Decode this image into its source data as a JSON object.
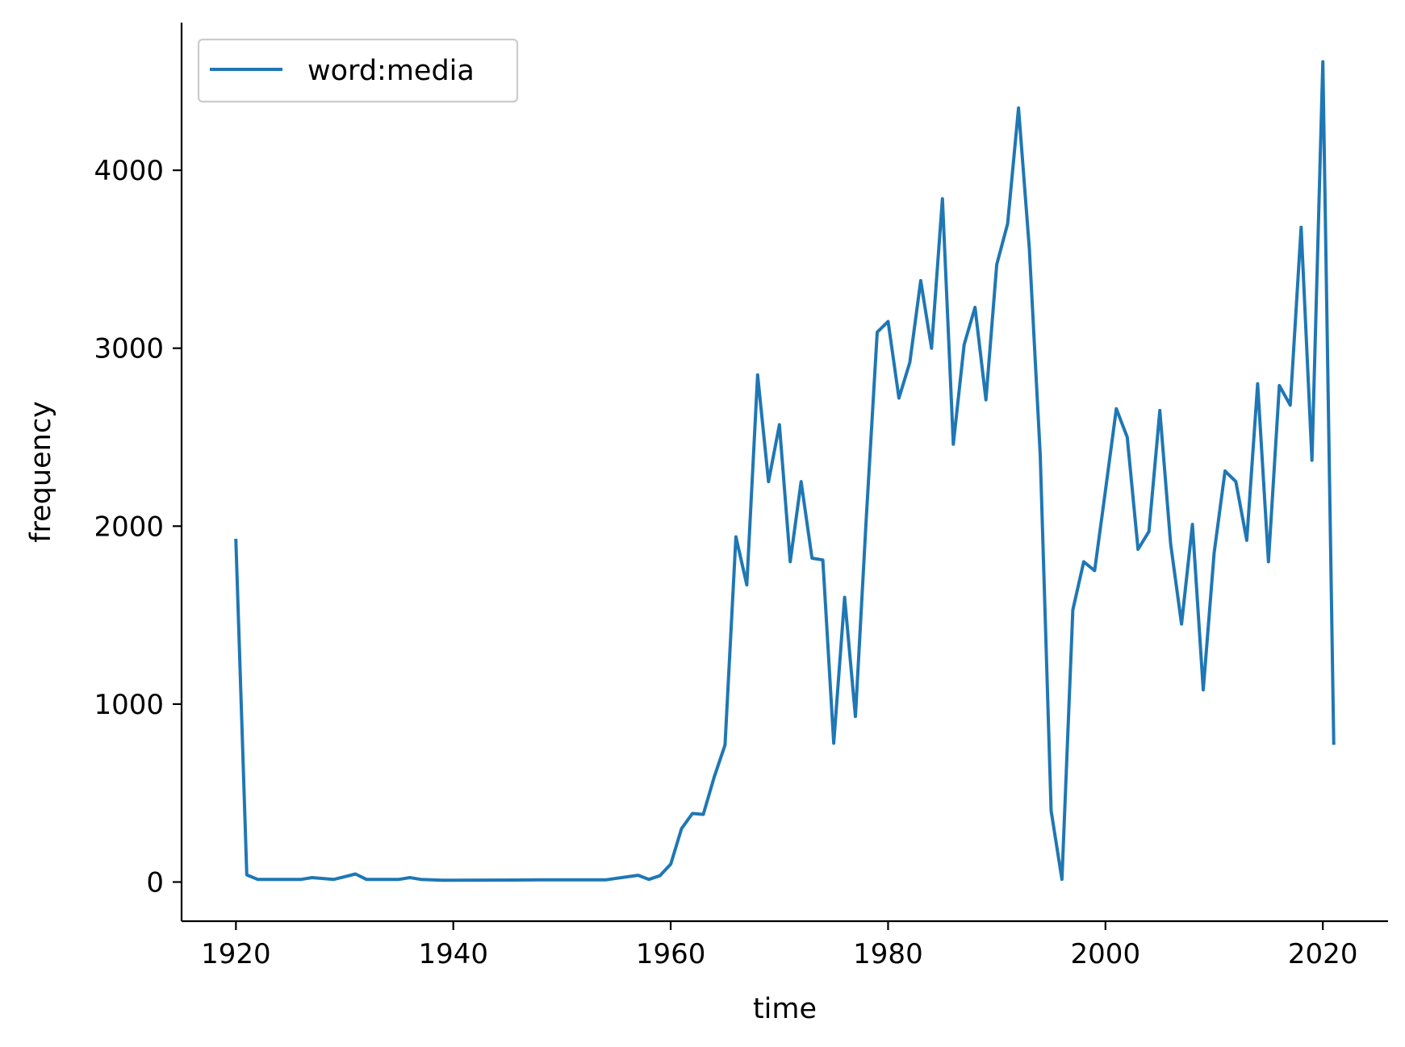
{
  "chart_data": {
    "type": "line",
    "title": "",
    "xlabel": "time",
    "ylabel": "frequency",
    "xlim": [
      1915,
      2026
    ],
    "ylim": [
      -220,
      4830
    ],
    "xticks": [
      1920,
      1940,
      1960,
      1980,
      2000,
      2020
    ],
    "yticks": [
      0,
      1000,
      2000,
      3000,
      4000
    ],
    "grid": false,
    "legend_position": "top-left",
    "series": [
      {
        "name": "word:media",
        "color": "#1f77b4",
        "x": [
          1920,
          1921,
          1922,
          1923,
          1924,
          1925,
          1926,
          1927,
          1928,
          1929,
          1930,
          1931,
          1932,
          1933,
          1934,
          1935,
          1936,
          1937,
          1938,
          1939,
          1940,
          1948,
          1954,
          1957,
          1958,
          1959,
          1960,
          1961,
          1962,
          1963,
          1964,
          1965,
          1966,
          1967,
          1968,
          1969,
          1970,
          1971,
          1972,
          1973,
          1974,
          1975,
          1976,
          1977,
          1978,
          1979,
          1980,
          1981,
          1982,
          1983,
          1984,
          1985,
          1986,
          1987,
          1988,
          1989,
          1990,
          1991,
          1992,
          1993,
          1994,
          1995,
          1996,
          1997,
          1998,
          1999,
          2000,
          2001,
          2002,
          2003,
          2004,
          2005,
          2006,
          2007,
          2008,
          2009,
          2010,
          2011,
          2012,
          2013,
          2014,
          2015,
          2016,
          2017,
          2018,
          2019,
          2020,
          2021
        ],
        "y": [
          1920,
          40,
          15,
          15,
          15,
          15,
          15,
          25,
          20,
          15,
          30,
          45,
          15,
          15,
          15,
          15,
          25,
          15,
          12,
          10,
          10,
          12,
          12,
          38,
          15,
          35,
          100,
          300,
          385,
          380,
          590,
          770,
          1940,
          1670,
          2850,
          2250,
          2570,
          1800,
          2250,
          1820,
          1810,
          780,
          1600,
          930,
          2050,
          3090,
          3150,
          2720,
          2920,
          3380,
          3000,
          3840,
          2460,
          3020,
          3230,
          2710,
          3470,
          3700,
          4350,
          3560,
          2400,
          400,
          15,
          1530,
          1800,
          1750,
          2200,
          2660,
          2500,
          1870,
          1970,
          2650,
          1900,
          1450,
          2010,
          1080,
          1850,
          2310,
          2250,
          1920,
          2800,
          1800,
          2790,
          2680,
          3680,
          2370,
          4610,
          780
        ]
      }
    ]
  }
}
